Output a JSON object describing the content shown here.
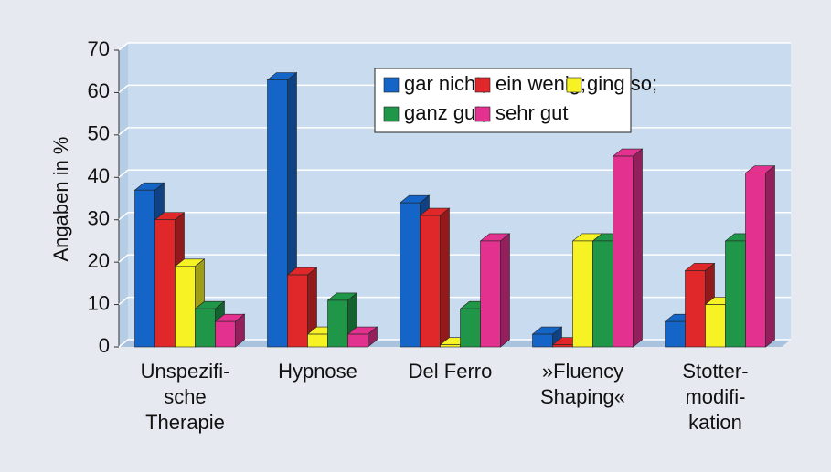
{
  "chart_data": {
    "type": "bar3d",
    "y_label": "Angaben in %",
    "categories": [
      "Unspezifi-\nsche\nTherapie",
      "Hypnose",
      "Del Ferro",
      "»Fluency\nShaping«",
      "Stotter-\nmodifi-\nkation"
    ],
    "series": [
      {
        "name": "gar nicht;",
        "color": "#1565c8",
        "values": [
          37,
          63,
          34,
          3,
          6
        ]
      },
      {
        "name": "ein wenig;",
        "color": "#e0282a",
        "values": [
          30,
          17,
          31,
          0.5,
          18
        ]
      },
      {
        "name": "ging so;",
        "color": "#f6f224",
        "values": [
          19,
          3,
          0.5,
          25,
          10
        ]
      },
      {
        "name": "ganz gut;",
        "color": "#1f9648",
        "values": [
          9,
          11,
          9,
          25,
          25
        ]
      },
      {
        "name": "sehr gut",
        "color": "#e2318e",
        "values": [
          6,
          3,
          25,
          45,
          41
        ]
      }
    ],
    "ylim": [
      0,
      70
    ],
    "yticks": [
      0,
      10,
      20,
      30,
      40,
      50,
      60,
      70
    ],
    "grid": true,
    "legend": "top-right"
  }
}
